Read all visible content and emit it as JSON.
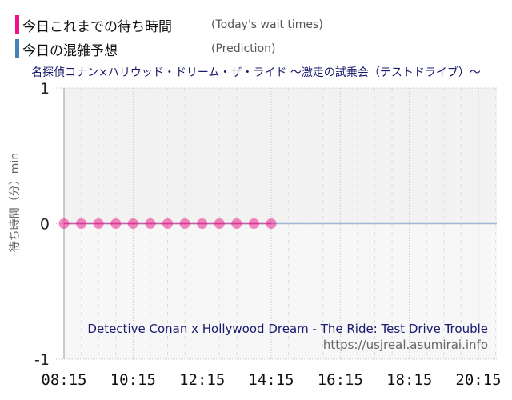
{
  "legend": {
    "items": [
      {
        "label_jp": "今日これまでの待ち時間",
        "label_en": "(Today's wait times)",
        "color": "#ee1188"
      },
      {
        "label_jp": "今日の混雑予想",
        "label_en": "(Prediction)",
        "color": "#4682b4"
      }
    ]
  },
  "title": "名探偵コナン×ハリウッド・ドリーム・ザ・ライド ～激走の試乗会（テストドライブ）～",
  "watermark": {
    "title_en": "Detective Conan x Hollywood Dream - The Ride: Test Drive Trouble",
    "url": "https://usjreal.asumirai.info"
  },
  "chart_data": {
    "type": "line",
    "title": "名探偵コナン×ハリウッド・ドリーム・ザ・ライド ～激走の試乗会（テストドライブ）～",
    "xlabel": "",
    "ylabel": "待ち時間（分）min",
    "ylim": [
      -1,
      1
    ],
    "yticks": [
      "1",
      "0",
      "-1"
    ],
    "xticks": [
      "08:15",
      "10:15",
      "12:15",
      "14:15",
      "16:15",
      "18:15",
      "20:15"
    ],
    "xrange": [
      "08:15",
      "21:00"
    ],
    "grid": true,
    "legend_position": "top-left",
    "series": [
      {
        "name": "今日これまでの待ち時間 (Today's wait times)",
        "color": "#ee1188",
        "x": [
          "08:15",
          "08:45",
          "09:15",
          "09:45",
          "10:15",
          "10:45",
          "11:15",
          "11:45",
          "12:15",
          "12:45",
          "13:15",
          "13:45",
          "14:15"
        ],
        "values": [
          0,
          0,
          0,
          0,
          0,
          0,
          0,
          0,
          0,
          0,
          0,
          0,
          0
        ]
      },
      {
        "name": "今日の混雑予想 (Prediction)",
        "color": "#4682b4",
        "x": [
          "08:15",
          "21:00"
        ],
        "values": [
          0,
          0
        ]
      }
    ]
  }
}
